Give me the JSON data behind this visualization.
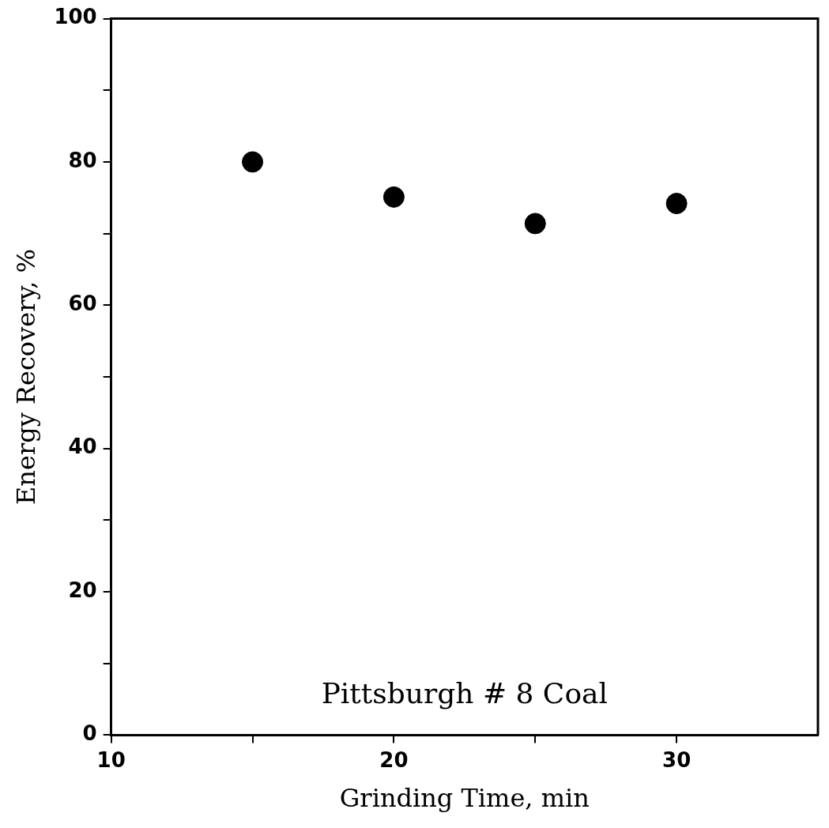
{
  "chart_data": {
    "type": "scatter",
    "xlabel": "Grinding Time, min",
    "ylabel": "Energy Recovery, %",
    "x": [
      15,
      20,
      25,
      30
    ],
    "values": [
      80,
      75.1,
      71.4,
      74.2
    ],
    "color": "#000000",
    "marker": "circle",
    "xlim": [
      10,
      35
    ],
    "xticks": [
      10,
      {
        "value": 15,
        "label": null
      },
      20,
      {
        "value": 25,
        "label": null
      },
      30
    ],
    "ylim": [
      0,
      100
    ],
    "yticks": [
      0,
      {
        "value": 10,
        "label": null
      },
      20,
      {
        "value": 30,
        "label": null
      },
      40,
      {
        "value": 50,
        "label": null
      },
      60,
      {
        "value": 70,
        "label": null
      },
      80,
      {
        "value": 90,
        "label": null
      },
      100
    ],
    "grid": false,
    "legend": false,
    "annotations": [
      "Pittsburgh # 8 Coal"
    ]
  }
}
